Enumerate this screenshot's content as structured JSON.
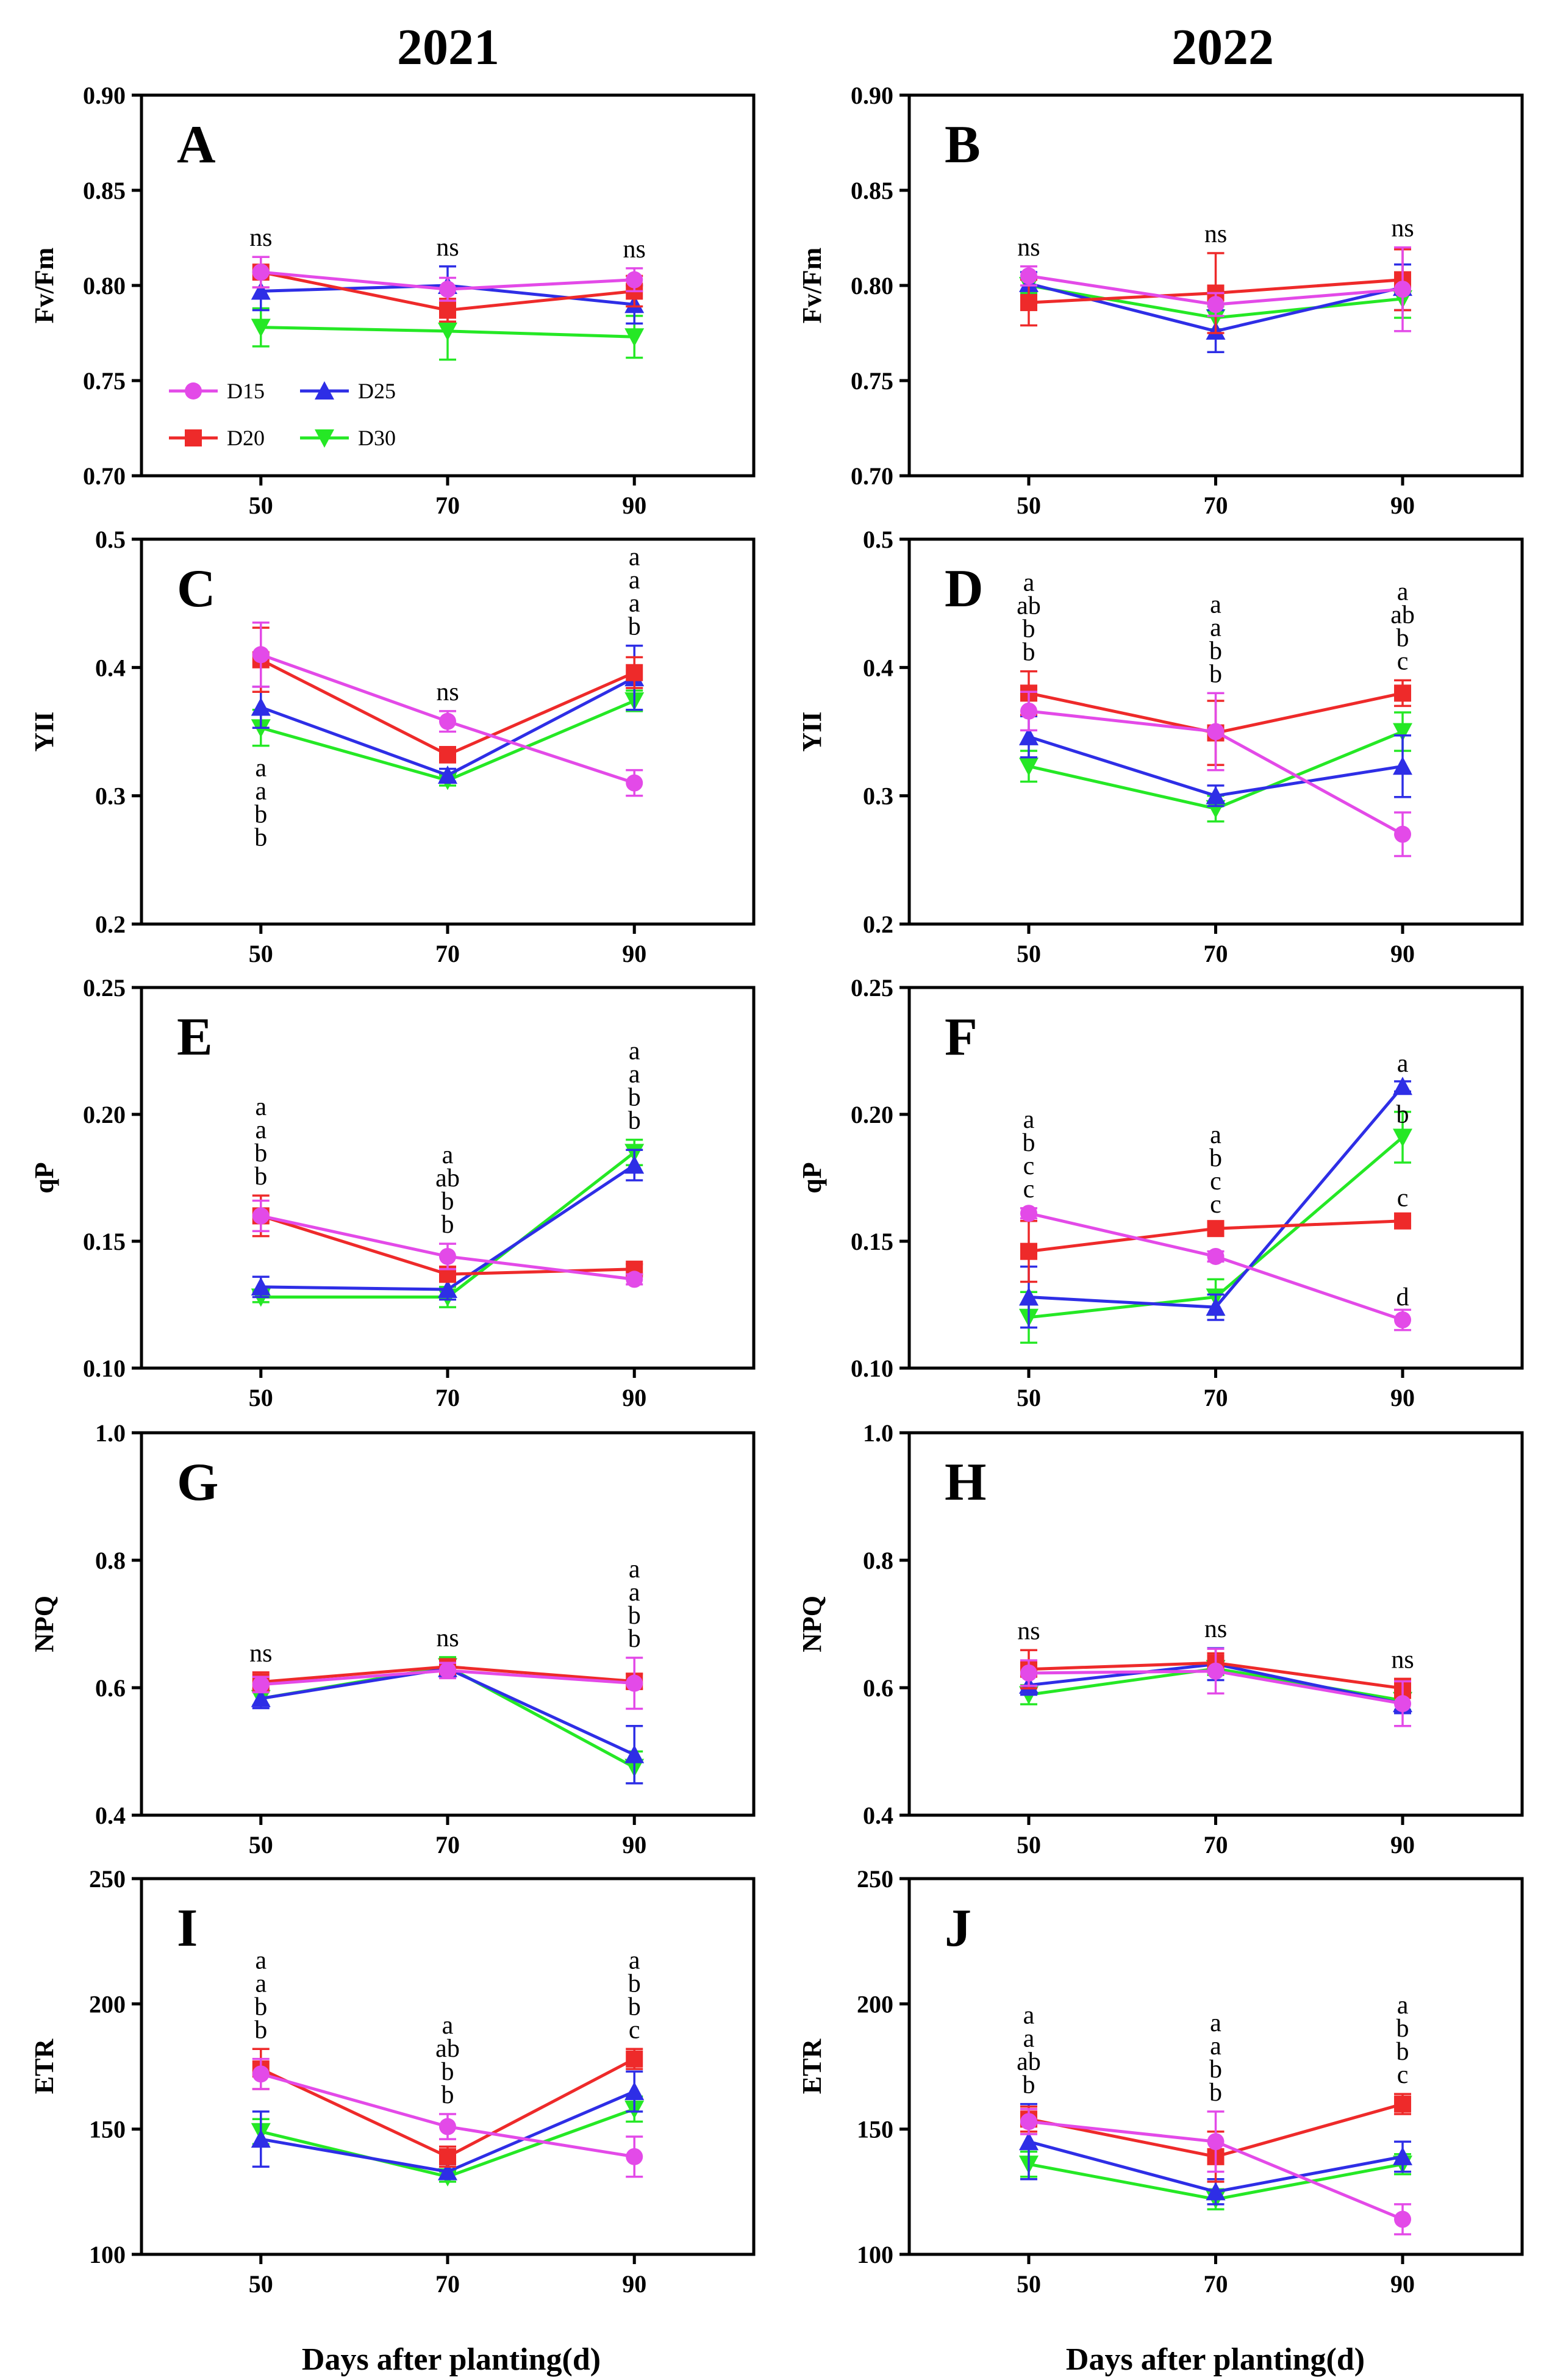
{
  "years": [
    "2021",
    "2022"
  ],
  "x_label": "Days after planting(d)",
  "legend": [
    {
      "name": "D15",
      "color": "#e34ae8",
      "marker": "circle"
    },
    {
      "name": "D25",
      "color": "#2e2ee6",
      "marker": "triangle-up"
    },
    {
      "name": "D20",
      "color": "#ee2a2a",
      "marker": "square"
    },
    {
      "name": "D30",
      "color": "#25e825",
      "marker": "triangle-down"
    }
  ],
  "chart_data": [
    {
      "panel": "A",
      "type": "line",
      "ylabel": "Fv/Fm",
      "x": [
        50,
        70,
        90
      ],
      "ylim": [
        0.7,
        0.9
      ],
      "yticks": [
        "0.70",
        "0.75",
        "0.80",
        "0.85",
        "0.90"
      ],
      "xticks": [
        "50",
        "70",
        "90"
      ],
      "series": [
        {
          "name": "D15",
          "values": [
            0.807,
            0.798,
            0.803
          ],
          "errors": [
            0.008,
            0.006,
            0.006
          ]
        },
        {
          "name": "D20",
          "values": [
            0.807,
            0.787,
            0.797
          ],
          "errors": [
            0.008,
            0.006,
            0.008
          ]
        },
        {
          "name": "D25",
          "values": [
            0.797,
            0.8,
            0.79
          ],
          "errors": [
            0.01,
            0.01,
            0.01
          ]
        },
        {
          "name": "D30",
          "values": [
            0.778,
            0.776,
            0.773
          ],
          "errors": [
            0.01,
            0.015,
            0.011
          ]
        }
      ],
      "annotations": [
        [
          "ns"
        ],
        [
          "ns"
        ],
        [
          "ns"
        ]
      ]
    },
    {
      "panel": "B",
      "type": "line",
      "ylabel": "Fv/Fm",
      "x": [
        50,
        70,
        90
      ],
      "ylim": [
        0.7,
        0.9
      ],
      "yticks": [
        "0.70",
        "0.75",
        "0.80",
        "0.85",
        "0.90"
      ],
      "xticks": [
        "50",
        "70",
        "90"
      ],
      "series": [
        {
          "name": "D15",
          "values": [
            0.805,
            0.79,
            0.798
          ],
          "errors": [
            0.005,
            0.006,
            0.022
          ]
        },
        {
          "name": "D20",
          "values": [
            0.791,
            0.796,
            0.803
          ],
          "errors": [
            0.012,
            0.021,
            0.016
          ]
        },
        {
          "name": "D25",
          "values": [
            0.801,
            0.776,
            0.799
          ],
          "errors": [
            0.006,
            0.011,
            0.012
          ]
        },
        {
          "name": "D30",
          "values": [
            0.8,
            0.783,
            0.793
          ],
          "errors": [
            0.004,
            0.006,
            0.01
          ]
        }
      ],
      "annotations": [
        [
          "ns"
        ],
        [
          "ns"
        ],
        [
          "ns"
        ]
      ]
    },
    {
      "panel": "C",
      "type": "line",
      "ylabel": "YII",
      "x": [
        50,
        70,
        90
      ],
      "ylim": [
        0.2,
        0.5
      ],
      "yticks": [
        "0.2",
        "0.3",
        "0.4",
        "0.5"
      ],
      "xticks": [
        "50",
        "70",
        "90"
      ],
      "series": [
        {
          "name": "D15",
          "values": [
            0.41,
            0.358,
            0.31
          ],
          "errors": [
            0.025,
            0.008,
            0.01
          ]
        },
        {
          "name": "D20",
          "values": [
            0.406,
            0.332,
            0.396
          ],
          "errors": [
            0.025,
            0.006,
            0.012
          ]
        },
        {
          "name": "D25",
          "values": [
            0.369,
            0.316,
            0.392
          ],
          "errors": [
            0.016,
            0.005,
            0.025
          ]
        },
        {
          "name": "D30",
          "values": [
            0.353,
            0.312,
            0.374
          ],
          "errors": [
            0.014,
            0.004,
            0.008
          ]
        }
      ],
      "annotations": [
        [
          "a",
          "a",
          "b",
          "b"
        ],
        [
          "ns"
        ],
        [
          "a",
          "a",
          "a",
          "b"
        ]
      ]
    },
    {
      "panel": "D",
      "type": "line",
      "ylabel": "YII",
      "x": [
        50,
        70,
        90
      ],
      "ylim": [
        0.2,
        0.5
      ],
      "yticks": [
        "0.2",
        "0.3",
        "0.4",
        "0.5"
      ],
      "xticks": [
        "50",
        "70",
        "90"
      ],
      "series": [
        {
          "name": "D15",
          "values": [
            0.366,
            0.35,
            0.27
          ],
          "errors": [
            0.015,
            0.03,
            0.017
          ]
        },
        {
          "name": "D20",
          "values": [
            0.38,
            0.349,
            0.38
          ],
          "errors": [
            0.017,
            0.025,
            0.01
          ]
        },
        {
          "name": "D25",
          "values": [
            0.346,
            0.3,
            0.323
          ],
          "errors": [
            0.016,
            0.008,
            0.024
          ]
        },
        {
          "name": "D30",
          "values": [
            0.323,
            0.29,
            0.35
          ],
          "errors": [
            0.012,
            0.01,
            0.015
          ]
        }
      ],
      "annotations": [
        [
          "a",
          "ab",
          "b",
          "b"
        ],
        [
          "a",
          "a",
          "b",
          "b"
        ],
        [
          "a",
          "ab",
          "b",
          "c"
        ]
      ]
    },
    {
      "panel": "E",
      "type": "line",
      "ylabel": "qP",
      "x": [
        50,
        70,
        90
      ],
      "ylim": [
        0.1,
        0.25
      ],
      "yticks": [
        "0.10",
        "0.15",
        "0.20",
        "0.25"
      ],
      "xticks": [
        "50",
        "70",
        "90"
      ],
      "series": [
        {
          "name": "D15",
          "values": [
            0.16,
            0.144,
            0.135
          ],
          "errors": [
            0.006,
            0.005,
            0.002
          ]
        },
        {
          "name": "D20",
          "values": [
            0.16,
            0.137,
            0.139
          ],
          "errors": [
            0.008,
            0.003,
            0.002
          ]
        },
        {
          "name": "D25",
          "values": [
            0.132,
            0.131,
            0.18
          ],
          "errors": [
            0.004,
            0.004,
            0.006
          ]
        },
        {
          "name": "D30",
          "values": [
            0.128,
            0.128,
            0.185
          ],
          "errors": [
            0.002,
            0.004,
            0.005
          ]
        }
      ],
      "annotations": [
        [
          "a",
          "a",
          "b",
          "b"
        ],
        [
          "a",
          "ab",
          "b",
          "b"
        ],
        [
          "a",
          "a",
          "b",
          "b"
        ]
      ]
    },
    {
      "panel": "F",
      "type": "line",
      "ylabel": "qP",
      "x": [
        50,
        70,
        90
      ],
      "ylim": [
        0.1,
        0.25
      ],
      "yticks": [
        "0.10",
        "0.15",
        "0.20",
        "0.25"
      ],
      "xticks": [
        "50",
        "70",
        "90"
      ],
      "series": [
        {
          "name": "D15",
          "values": [
            0.161,
            0.144,
            0.119
          ],
          "errors": [
            0.002,
            0.002,
            0.004
          ]
        },
        {
          "name": "D20",
          "values": [
            0.146,
            0.155,
            0.158
          ],
          "errors": [
            0.012,
            0.002,
            0.002
          ]
        },
        {
          "name": "D25",
          "values": [
            0.128,
            0.124,
            0.211
          ],
          "errors": [
            0.012,
            0.005,
            0.002
          ]
        },
        {
          "name": "D30",
          "values": [
            0.12,
            0.128,
            0.191
          ],
          "errors": [
            0.01,
            0.007,
            0.01
          ]
        }
      ],
      "annotations": [
        [
          "a",
          "b",
          "c",
          "c"
        ],
        [
          "a",
          "b",
          "c",
          "c"
        ],
        []
      ],
      "point_labels": [
        {
          "x": 90,
          "y": 0.211,
          "text": "a"
        },
        {
          "x": 90,
          "y": 0.191,
          "text": "b"
        },
        {
          "x": 90,
          "y": 0.158,
          "text": "c"
        },
        {
          "x": 90,
          "y": 0.119,
          "text": "d"
        }
      ]
    },
    {
      "panel": "G",
      "type": "line",
      "ylabel": "NPQ",
      "x": [
        50,
        70,
        90
      ],
      "ylim": [
        0.4,
        1.0
      ],
      "yticks": [
        "0.4",
        "0.6",
        "0.8",
        "1.0"
      ],
      "xticks": [
        "50",
        "70",
        "90"
      ],
      "series": [
        {
          "name": "D15",
          "values": [
            0.605,
            0.627,
            0.607
          ],
          "errors": [
            0.012,
            0.012,
            0.04
          ]
        },
        {
          "name": "D20",
          "values": [
            0.609,
            0.633,
            0.61
          ],
          "errors": [
            0.015,
            0.01,
            0.012
          ]
        },
        {
          "name": "D25",
          "values": [
            0.583,
            0.63,
            0.495
          ],
          "errors": [
            0.015,
            0.012,
            0.045
          ]
        },
        {
          "name": "D30",
          "values": [
            0.583,
            0.633,
            0.475
          ],
          "errors": [
            0.01,
            0.015,
            0.025
          ]
        }
      ],
      "annotations": [
        [
          "ns"
        ],
        [
          "ns"
        ],
        [
          "a",
          "a",
          "b",
          "b"
        ]
      ]
    },
    {
      "panel": "H",
      "type": "line",
      "ylabel": "NPQ",
      "x": [
        50,
        70,
        90
      ],
      "ylim": [
        0.4,
        1.0
      ],
      "yticks": [
        "0.4",
        "0.6",
        "0.8",
        "1.0"
      ],
      "xticks": [
        "50",
        "70",
        "90"
      ],
      "series": [
        {
          "name": "D15",
          "values": [
            0.623,
            0.626,
            0.575
          ],
          "errors": [
            0.02,
            0.035,
            0.035
          ]
        },
        {
          "name": "D20",
          "values": [
            0.629,
            0.639,
            0.599
          ],
          "errors": [
            0.03,
            0.015,
            0.015
          ]
        },
        {
          "name": "D25",
          "values": [
            0.604,
            0.637,
            0.575
          ],
          "errors": [
            0.015,
            0.025,
            0.015
          ]
        },
        {
          "name": "D30",
          "values": [
            0.589,
            0.63,
            0.58
          ],
          "errors": [
            0.015,
            0.01,
            0.015
          ]
        }
      ],
      "annotations": [
        [
          "ns"
        ],
        [
          "ns"
        ],
        [
          "ns"
        ]
      ]
    },
    {
      "panel": "I",
      "type": "line",
      "ylabel": "ETR",
      "x": [
        50,
        70,
        90
      ],
      "ylim": [
        100,
        250
      ],
      "yticks": [
        "100",
        "150",
        "200",
        "250"
      ],
      "xticks": [
        "50",
        "70",
        "90"
      ],
      "series": [
        {
          "name": "D15",
          "values": [
            172,
            151,
            139
          ],
          "errors": [
            6,
            5,
            8
          ]
        },
        {
          "name": "D20",
          "values": [
            174,
            139,
            178
          ],
          "errors": [
            8,
            4,
            4
          ]
        },
        {
          "name": "D25",
          "values": [
            146,
            133,
            165
          ],
          "errors": [
            11,
            3,
            8
          ]
        },
        {
          "name": "D30",
          "values": [
            149,
            131,
            158
          ],
          "errors": [
            5,
            2,
            5
          ]
        }
      ],
      "annotations": [
        [
          "a",
          "a",
          "b",
          "b"
        ],
        [
          "a",
          "ab",
          "b",
          "b"
        ],
        [
          "a",
          "b",
          "b",
          "c"
        ]
      ]
    },
    {
      "panel": "J",
      "type": "line",
      "ylabel": "ETR",
      "x": [
        50,
        70,
        90
      ],
      "ylim": [
        100,
        250
      ],
      "yticks": [
        "100",
        "150",
        "200",
        "250"
      ],
      "xticks": [
        "50",
        "70",
        "90"
      ],
      "series": [
        {
          "name": "D15",
          "values": [
            153,
            145,
            114
          ],
          "errors": [
            5,
            12,
            6
          ]
        },
        {
          "name": "D20",
          "values": [
            154,
            139,
            160
          ],
          "errors": [
            5,
            10,
            4
          ]
        },
        {
          "name": "D25",
          "values": [
            145,
            125,
            139
          ],
          "errors": [
            15,
            5,
            6
          ]
        },
        {
          "name": "D30",
          "values": [
            136,
            122,
            136
          ],
          "errors": [
            5,
            4,
            4
          ]
        }
      ],
      "annotations": [
        [
          "a",
          "a",
          "ab",
          "b"
        ],
        [
          "a",
          "a",
          "b",
          "b"
        ],
        [
          "a",
          "b",
          "b",
          "c"
        ]
      ]
    }
  ]
}
